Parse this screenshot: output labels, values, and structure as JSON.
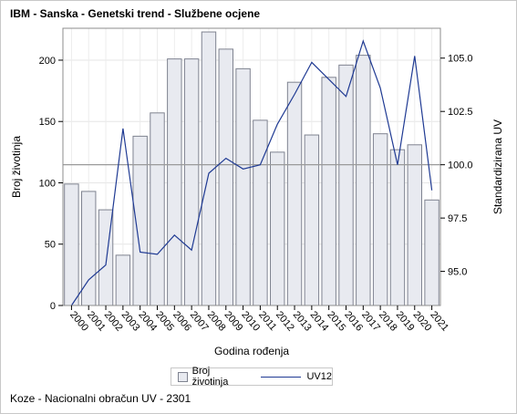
{
  "title": "IBM - Sanska - Genetski trend - Službene ocjene",
  "footnote": "Koze - Nacionalni obračun UV - 2301",
  "chart_data": {
    "type": "bar",
    "categories": [
      "2000",
      "2001",
      "2002",
      "2003",
      "2004",
      "2005",
      "2006",
      "2007",
      "2008",
      "2009",
      "2010",
      "2011",
      "2012",
      "2013",
      "2014",
      "2015",
      "2016",
      "2017",
      "2018",
      "2019",
      "2020",
      "2021"
    ],
    "series": [
      {
        "name": "Broj životinja",
        "type": "bar",
        "axis": "left",
        "values": [
          99,
          93,
          78,
          41,
          138,
          157,
          201,
          201,
          223,
          209,
          193,
          151,
          125,
          182,
          139,
          186,
          196,
          204,
          140,
          127,
          131,
          86
        ]
      },
      {
        "name": "UV12",
        "type": "line",
        "axis": "right",
        "values": [
          93.4,
          94.6,
          95.3,
          101.7,
          95.9,
          95.8,
          96.7,
          96.0,
          99.6,
          100.3,
          99.8,
          100.0,
          101.9,
          103.3,
          104.8,
          104.0,
          103.2,
          105.8,
          103.6,
          100.0,
          105.1,
          98.8
        ]
      }
    ],
    "xlabel": "Godina rođenja",
    "ylabel": "Broj životinja",
    "y2label": "Standardizirana UV",
    "ylim": [
      0,
      226
    ],
    "y2lim": [
      93.4,
      106.4
    ],
    "yticks": [
      0,
      50,
      100,
      150,
      200
    ],
    "y2ticks": [
      "95.0",
      "97.5",
      "100.0",
      "102.5",
      "105.0"
    ],
    "reference_line_y2": 100,
    "grid": true,
    "legend_position": "bottom",
    "colors": {
      "bar_fill": "#e8eaf0",
      "bar_stroke": "#7f8390",
      "line": "#1f3a93",
      "reference": "#9a9a9a"
    }
  }
}
